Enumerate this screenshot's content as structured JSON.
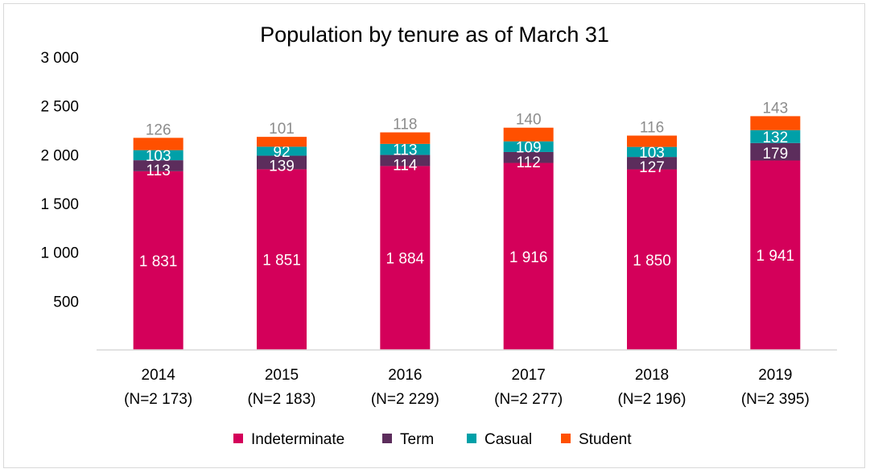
{
  "chart_data": {
    "type": "bar",
    "stacked": true,
    "title": "Population by tenure as of March 31",
    "categories": [
      "2014",
      "2015",
      "2016",
      "2017",
      "2018",
      "2019"
    ],
    "category_sublabels": [
      "(N=2 173)",
      "(N=2 183)",
      "(N=2 229)",
      "(N=2 277)",
      "(N=2 196)",
      "(N=2 395)"
    ],
    "series": [
      {
        "name": "Indeterminate",
        "color": "#d4005a",
        "values": [
          1831,
          1851,
          1884,
          1916,
          1850,
          1941
        ],
        "labels": [
          "1 831",
          "1 851",
          "1 884",
          "1 916",
          "1 850",
          "1 941"
        ]
      },
      {
        "name": "Term",
        "color": "#5c2d5c",
        "values": [
          113,
          139,
          114,
          112,
          127,
          179
        ],
        "labels": [
          "113",
          "139",
          "114",
          "112",
          "127",
          "179"
        ]
      },
      {
        "name": "Casual",
        "color": "#00a0a8",
        "values": [
          103,
          92,
          113,
          109,
          103,
          132
        ],
        "labels": [
          "103",
          "92",
          "113",
          "109",
          "103",
          "132"
        ]
      },
      {
        "name": "Student",
        "color": "#ff5000",
        "values": [
          126,
          101,
          118,
          140,
          116,
          143
        ],
        "labels": [
          "126",
          "101",
          "118",
          "140",
          "116",
          "143"
        ]
      }
    ],
    "ylim": [
      0,
      3000
    ],
    "yticks": [
      500,
      1000,
      1500,
      2000,
      2500,
      3000
    ],
    "ytick_labels": [
      "500",
      "1 000",
      "1 500",
      "2 000",
      "2 500",
      "3 000"
    ],
    "grid": false,
    "legend_position": "bottom"
  }
}
